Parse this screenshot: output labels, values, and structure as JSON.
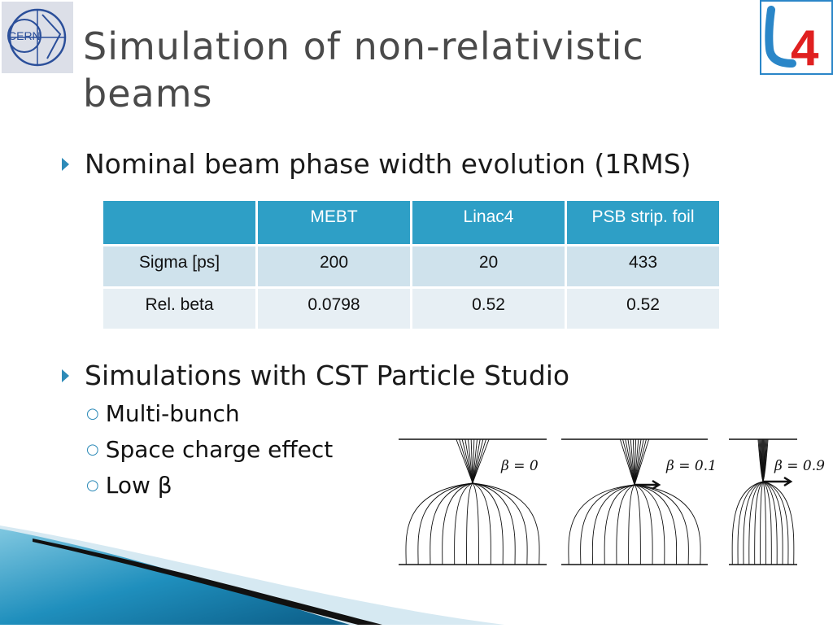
{
  "title": "Simulation of non-relativistic beams",
  "logos": {
    "cern": "CERN",
    "linac": "4"
  },
  "bullets": [
    {
      "text": "Nominal beam phase width evolution (1RMS)"
    },
    {
      "text": "Simulations with CST Particle Studio",
      "subitems": [
        "Multi-bunch",
        "Space charge effect",
        "Low β"
      ]
    }
  ],
  "table": {
    "headers": [
      "",
      "MEBT",
      "Linac4",
      "PSB strip. foil"
    ],
    "rows": [
      [
        "Sigma [ps]",
        "200",
        "20",
        "433"
      ],
      [
        "Rel. beta",
        "0.0798",
        "0.52",
        "0.52"
      ]
    ]
  },
  "figure": {
    "panels": [
      {
        "label": "β = 0"
      },
      {
        "label": "β = 0.1"
      },
      {
        "label": "β = 0.9"
      }
    ]
  },
  "colors": {
    "accent": "#2e9fc6",
    "bullet": "#2e8bb8",
    "title": "#4a4a4a"
  },
  "icons": [
    "bullet-arrow-icon",
    "sub-bullet-ring-icon"
  ]
}
